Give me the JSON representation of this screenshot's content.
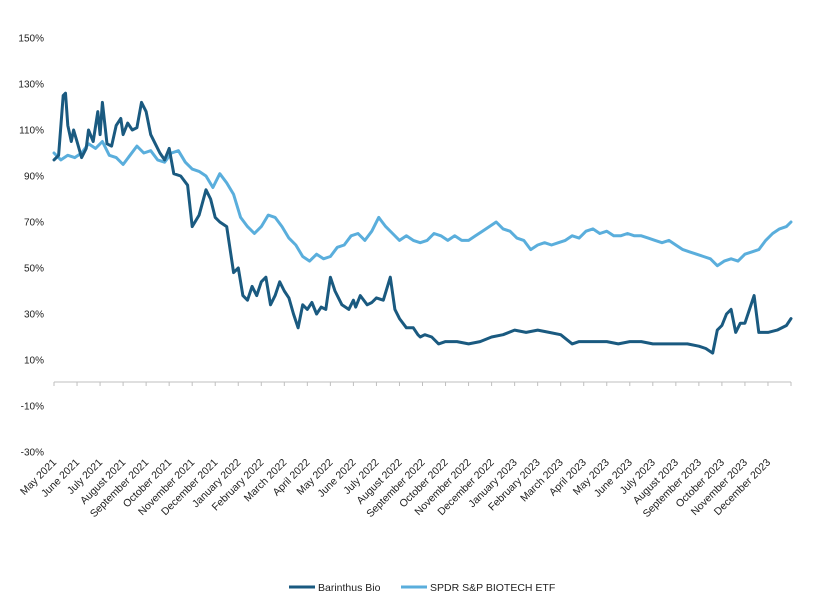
{
  "chart_data": {
    "type": "line",
    "title": "",
    "xlabel": "",
    "ylabel": "",
    "ylim": [
      -30,
      150
    ],
    "y_ticks": [
      -30,
      -10,
      10,
      30,
      50,
      70,
      90,
      110,
      130,
      150
    ],
    "y_tick_labels": [
      "-30%",
      "-10%",
      "10%",
      "30%",
      "50%",
      "70%",
      "90%",
      "110%",
      "130%",
      "150%"
    ],
    "grid": false,
    "legend_position": "bottom",
    "x_tick_labels": [
      "May 2021",
      "June 2021",
      "July 2021",
      "August 2021",
      "September 2021",
      "October 2021",
      "November 2021",
      "December 2021",
      "January 2022",
      "February 2022",
      "March 2022",
      "April 2022",
      "May 2022",
      "June 2022",
      "July 2022",
      "August 2022",
      "September 2022",
      "October 2022",
      "November 2022",
      "December 2022",
      "January 2023",
      "February 2023",
      "March 2023",
      "April 2023",
      "May 2023",
      "June 2023",
      "July 2023",
      "August 2023",
      "September 2023",
      "October 2023",
      "November 2023",
      "December 2023"
    ],
    "x_range": [
      0,
      32
    ],
    "series": [
      {
        "name": "Barinthus Bio",
        "color": "#1a5a80",
        "x": [
          0,
          0.2,
          0.4,
          0.5,
          0.6,
          0.75,
          0.85,
          1.0,
          1.2,
          1.4,
          1.5,
          1.7,
          1.9,
          2.0,
          2.1,
          2.3,
          2.5,
          2.7,
          2.9,
          3.0,
          3.2,
          3.4,
          3.6,
          3.8,
          4.0,
          4.2,
          4.4,
          4.6,
          4.8,
          5.0,
          5.2,
          5.5,
          5.8,
          6.0,
          6.3,
          6.6,
          6.8,
          7.0,
          7.2,
          7.5,
          7.8,
          8.0,
          8.2,
          8.4,
          8.6,
          8.8,
          9.0,
          9.2,
          9.4,
          9.6,
          9.8,
          10.0,
          10.2,
          10.4,
          10.6,
          10.8,
          11.0,
          11.2,
          11.4,
          11.6,
          11.8,
          12.0,
          12.2,
          12.5,
          12.8,
          13.0,
          13.1,
          13.3,
          13.6,
          13.8,
          14.0,
          14.3,
          14.6,
          14.8,
          15.0,
          15.3,
          15.6,
          15.8,
          15.9,
          16.1,
          16.4,
          16.7,
          17.0,
          17.5,
          18.0,
          18.5,
          19.0,
          19.5,
          20.0,
          20.5,
          21.0,
          21.5,
          22.0,
          22.5,
          22.8,
          23.0,
          23.5,
          24.0,
          24.5,
          25.0,
          25.5,
          26.0,
          26.5,
          27.0,
          27.5,
          28.0,
          28.3,
          28.6,
          28.8,
          29.0,
          29.2,
          29.4,
          29.6,
          29.8,
          30.0,
          30.2,
          30.4,
          30.6,
          31.0,
          31.4,
          31.8,
          32.0
        ],
        "values": [
          97,
          99,
          125,
          126,
          112,
          105,
          110,
          105,
          98,
          102,
          110,
          105,
          118,
          108,
          122,
          104,
          103,
          112,
          115,
          108,
          113,
          110,
          111,
          122,
          118,
          108,
          104,
          100,
          97,
          102,
          91,
          90,
          86,
          68,
          73,
          84,
          80,
          72,
          70,
          68,
          48,
          50,
          38,
          36,
          42,
          38,
          44,
          46,
          34,
          38,
          44,
          40,
          37,
          30,
          24,
          34,
          32,
          35,
          30,
          33,
          32,
          46,
          40,
          34,
          32,
          36,
          33,
          38,
          34,
          35,
          37,
          36,
          46,
          32,
          28,
          24,
          24,
          21,
          20,
          21,
          20,
          17,
          18,
          18,
          17,
          18,
          20,
          21,
          23,
          22,
          23,
          22,
          21,
          17,
          18,
          18,
          18,
          18,
          17,
          18,
          18,
          17,
          17,
          17,
          17,
          16,
          15,
          13,
          23,
          25,
          30,
          32,
          22,
          26,
          26,
          32,
          38,
          22,
          22,
          23,
          25,
          28
        ]
      },
      {
        "name": "SPDR S&P BIOTECH ETF",
        "color": "#5aaedc",
        "x": [
          0,
          0.3,
          0.6,
          0.9,
          1.2,
          1.5,
          1.8,
          2.1,
          2.4,
          2.7,
          3.0,
          3.3,
          3.6,
          3.9,
          4.2,
          4.5,
          4.8,
          5.1,
          5.4,
          5.7,
          6.0,
          6.3,
          6.6,
          6.9,
          7.2,
          7.5,
          7.8,
          8.1,
          8.4,
          8.7,
          9.0,
          9.3,
          9.6,
          9.9,
          10.2,
          10.5,
          10.8,
          11.1,
          11.4,
          11.7,
          12.0,
          12.3,
          12.6,
          12.9,
          13.2,
          13.5,
          13.8,
          14.1,
          14.4,
          14.7,
          15.0,
          15.3,
          15.6,
          15.9,
          16.2,
          16.5,
          16.8,
          17.1,
          17.4,
          17.7,
          18.0,
          18.3,
          18.6,
          18.9,
          19.2,
          19.5,
          19.8,
          20.1,
          20.4,
          20.7,
          21.0,
          21.3,
          21.6,
          21.9,
          22.2,
          22.5,
          22.8,
          23.1,
          23.4,
          23.7,
          24.0,
          24.3,
          24.6,
          24.9,
          25.2,
          25.5,
          25.8,
          26.1,
          26.4,
          26.7,
          27.0,
          27.3,
          27.6,
          27.9,
          28.2,
          28.5,
          28.8,
          29.1,
          29.4,
          29.7,
          30.0,
          30.3,
          30.6,
          30.9,
          31.2,
          31.5,
          31.8,
          32.0
        ],
        "values": [
          100,
          97,
          99,
          98,
          100,
          104,
          102,
          105,
          99,
          98,
          95,
          99,
          103,
          100,
          101,
          97,
          96,
          100,
          101,
          96,
          93,
          92,
          90,
          85,
          91,
          87,
          82,
          72,
          68,
          65,
          68,
          73,
          72,
          68,
          63,
          60,
          55,
          53,
          56,
          54,
          55,
          59,
          60,
          64,
          65,
          62,
          66,
          72,
          68,
          65,
          62,
          64,
          62,
          61,
          62,
          65,
          64,
          62,
          64,
          62,
          62,
          64,
          66,
          68,
          70,
          67,
          66,
          63,
          62,
          58,
          60,
          61,
          60,
          61,
          62,
          64,
          63,
          66,
          67,
          65,
          66,
          64,
          64,
          65,
          64,
          64,
          63,
          62,
          61,
          62,
          60,
          58,
          57,
          56,
          55,
          54,
          51,
          53,
          54,
          53,
          56,
          57,
          58,
          62,
          65,
          67,
          68,
          70
        ]
      }
    ]
  }
}
